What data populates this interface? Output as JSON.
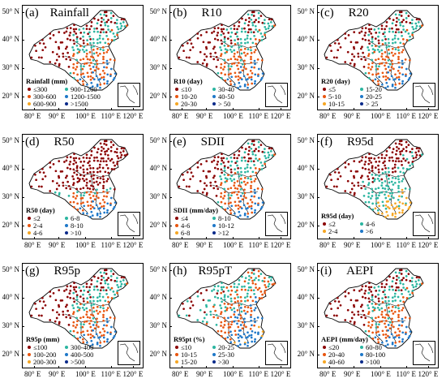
{
  "axes": {
    "lat_labels": [
      "50° N",
      "40° N",
      "30° N",
      "20° N"
    ],
    "lon_labels": [
      "80° E",
      "90° E",
      "100° E",
      "110° E",
      "120° E"
    ]
  },
  "panels": [
    {
      "letter": "(a)",
      "title": "Rainfall",
      "legend_title": "Rainfall (mm)",
      "legend": [
        {
          "label": "≤300",
          "color": "#8B0000"
        },
        {
          "label": "900-1200",
          "color": "#2BB5A0"
        },
        {
          "label": "300-600",
          "color": "#E8550F"
        },
        {
          "label": "1200-1500",
          "color": "#1F78C8"
        },
        {
          "label": "600-900",
          "color": "#F5A623"
        },
        {
          "label": ">1500",
          "color": "#0A2A8A"
        }
      ],
      "scheme": "rain"
    },
    {
      "letter": "(b)",
      "title": "R10",
      "legend_title": "R10 (day)",
      "legend": [
        {
          "label": "≤10",
          "color": "#8B0000"
        },
        {
          "label": "30-40",
          "color": "#2BB5A0"
        },
        {
          "label": "10-20",
          "color": "#E8550F"
        },
        {
          "label": "40-50",
          "color": "#1F78C8"
        },
        {
          "label": "20-30",
          "color": "#F5A623"
        },
        {
          "label": "> 50",
          "color": "#0A2A8A"
        }
      ],
      "scheme": "rain"
    },
    {
      "letter": "(c)",
      "title": "R20",
      "legend_title": "R20 (day)",
      "legend": [
        {
          "label": "≤5",
          "color": "#8B0000"
        },
        {
          "label": "15-20",
          "color": "#2BB5A0"
        },
        {
          "label": "5-10",
          "color": "#E8550F"
        },
        {
          "label": "20-25",
          "color": "#1F78C8"
        },
        {
          "label": "10-15",
          "color": "#F5A623"
        },
        {
          "label": "> 25",
          "color": "#0A2A8A"
        }
      ],
      "scheme": "rain"
    },
    {
      "letter": "(d)",
      "title": "R50",
      "legend_title": "R50 (day)",
      "legend": [
        {
          "label": "≤2",
          "color": "#8B0000"
        },
        {
          "label": "6-8",
          "color": "#2BB5A0"
        },
        {
          "label": "2-4",
          "color": "#E8550F"
        },
        {
          "label": "8-10",
          "color": "#1F78C8"
        },
        {
          "label": "4-6",
          "color": "#F5A623"
        },
        {
          "label": ">10",
          "color": "#0A2A8A"
        }
      ],
      "scheme": "dry"
    },
    {
      "letter": "(e)",
      "title": "SDII",
      "legend_title": "SDII (mm/day)",
      "legend": [
        {
          "label": "≤4",
          "color": "#8B0000"
        },
        {
          "label": "8-10",
          "color": "#2BB5A0"
        },
        {
          "label": "4-6",
          "color": "#E8550F"
        },
        {
          "label": "10-12",
          "color": "#1F78C8"
        },
        {
          "label": "6-8",
          "color": "#F5A623"
        },
        {
          "label": ">12",
          "color": "#0A2A8A"
        }
      ],
      "scheme": "rain"
    },
    {
      "letter": "(f)",
      "title": "R95d",
      "legend_title": "R95d (day)",
      "legend": [
        {
          "label": "≤2",
          "color": "#8B0000"
        },
        {
          "label": "4-6",
          "color": "#2BB5A0"
        },
        {
          "label": "2-4",
          "color": "#F5A623"
        },
        {
          "label": ">6",
          "color": "#1F78C8"
        }
      ],
      "scheme": "r95d"
    },
    {
      "letter": "(g)",
      "title": "R95p",
      "legend_title": "R95p (mm)",
      "legend": [
        {
          "label": "≤100",
          "color": "#8B0000"
        },
        {
          "label": "300-400",
          "color": "#2BB5A0"
        },
        {
          "label": "100-200",
          "color": "#E8550F"
        },
        {
          "label": "400-500",
          "color": "#1F78C8"
        },
        {
          "label": "200-300",
          "color": "#F5A623"
        },
        {
          "label": ">500",
          "color": "#0A2A8A"
        }
      ],
      "scheme": "rain"
    },
    {
      "letter": "(h)",
      "title": "R95pT",
      "legend_title": "R95pt (%)",
      "legend": [
        {
          "label": "≤10",
          "color": "#8B0000"
        },
        {
          "label": "20-25",
          "color": "#2BB5A0"
        },
        {
          "label": "10-15",
          "color": "#E8550F"
        },
        {
          "label": "25-30",
          "color": "#1F78C8"
        },
        {
          "label": "15-20",
          "color": "#F5A623"
        },
        {
          "label": ">30",
          "color": "#0A2A8A"
        }
      ],
      "scheme": "r95pt"
    },
    {
      "letter": "(i)",
      "title": "AEPI",
      "legend_title": "AEPI (mm/day)",
      "legend": [
        {
          "label": "≤20",
          "color": "#8B0000"
        },
        {
          "label": "60-80",
          "color": "#2BB5A0"
        },
        {
          "label": "20-40",
          "color": "#E8550F"
        },
        {
          "label": "80-100",
          "color": "#1F78C8"
        },
        {
          "label": "40-60",
          "color": "#F5A623"
        },
        {
          "label": ">100",
          "color": "#0A2A8A"
        }
      ],
      "scheme": "rain"
    }
  ]
}
